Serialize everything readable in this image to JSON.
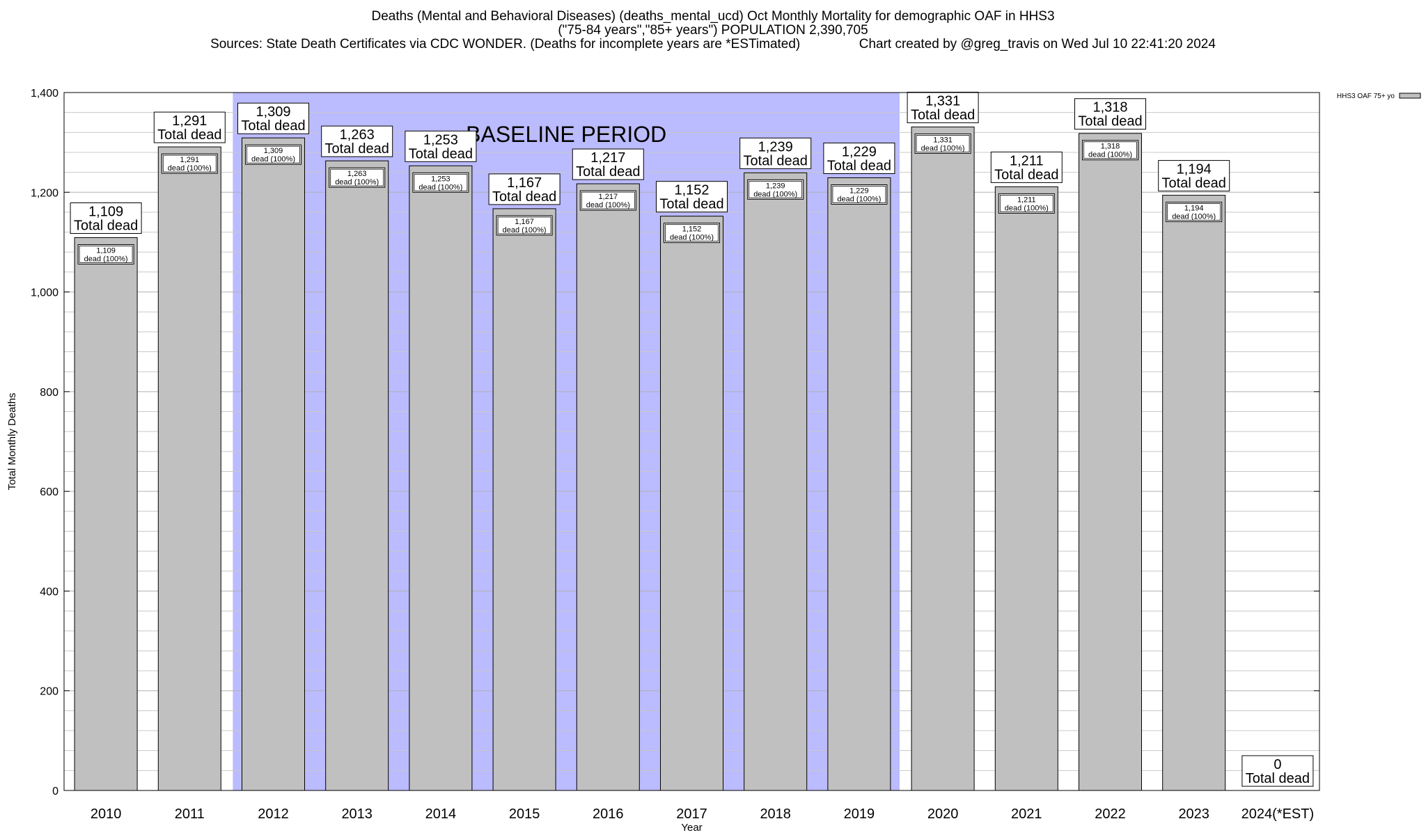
{
  "titles": {
    "line1": "Deaths (Mental and Behavioral Diseases) (deaths_mental_ucd) Oct Monthly Mortality for demographic OAF in HHS3",
    "line2": "(\"75-84 years\",\"85+ years\") POPULATION 2,390,705",
    "line3": "Sources: State Death Certificates via CDC WONDER. (Deaths for incomplete years are *ESTimated)                Chart created by @greg_travis on Wed Jul 10 22:41:20 2024"
  },
  "chart_data": {
    "type": "bar",
    "xlabel": "Year",
    "ylabel": "Total Monthly Deaths",
    "ylim": [
      0,
      1400
    ],
    "yticks": [
      0,
      200,
      400,
      600,
      800,
      1000,
      1200,
      1400
    ],
    "ytick_labels": [
      "0",
      "200",
      "400",
      "600",
      "800",
      "1,000",
      "1,200",
      "1,400"
    ],
    "minor_grid_step": 40,
    "grid": true,
    "legend": {
      "label": "HHS3 OAF 75+ yo",
      "placement": "top-right"
    },
    "baseline": {
      "label": "BASELINE PERIOD",
      "from": "2012",
      "to": "2019"
    },
    "categories": [
      "2010",
      "2011",
      "2012",
      "2013",
      "2014",
      "2015",
      "2016",
      "2017",
      "2018",
      "2019",
      "2020",
      "2021",
      "2022",
      "2023",
      "2024(*EST)"
    ],
    "series": [
      {
        "name": "HHS3 OAF 75+ yo",
        "values": [
          1109,
          1291,
          1309,
          1263,
          1253,
          1167,
          1217,
          1152,
          1239,
          1229,
          1331,
          1211,
          1318,
          1194,
          0
        ]
      }
    ],
    "top_labels": [
      "1,109",
      "1,291",
      "1,309",
      "1,263",
      "1,253",
      "1,167",
      "1,217",
      "1,152",
      "1,239",
      "1,229",
      "1,331",
      "1,211",
      "1,318",
      "1,194",
      "0"
    ],
    "top_label_suffix": "Total dead",
    "inner_labels": [
      "1,109",
      "1,291",
      "1,309",
      "1,263",
      "1,253",
      "1,167",
      "1,217",
      "1,152",
      "1,239",
      "1,229",
      "1,331",
      "1,211",
      "1,318",
      "1,194",
      ""
    ],
    "inner_label_suffix": "dead (100%)",
    "colors": {
      "bar": "#c0c0c0",
      "baseline": "#bbbbff",
      "grid": "#c8c8c8"
    }
  }
}
